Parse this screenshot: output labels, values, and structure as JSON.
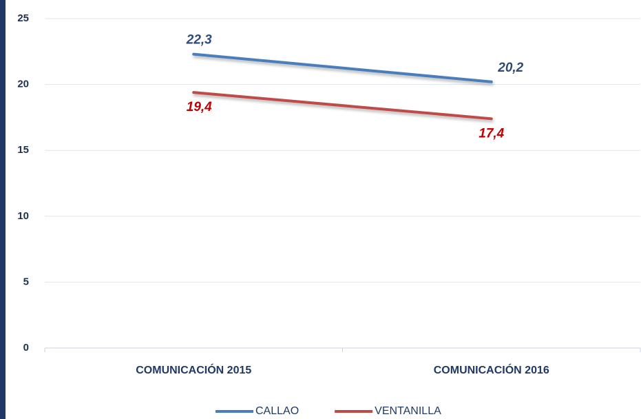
{
  "chart_data": {
    "type": "line",
    "categories": [
      "COMUNICACIÓN 2015",
      "COMUNICACIÓN 2016"
    ],
    "series": [
      {
        "name": "CALLAO",
        "color": "#4a7ebb",
        "label_color": "#2e4a7a",
        "values": [
          22.3,
          20.2
        ],
        "value_labels": [
          "22,3",
          "20,2"
        ]
      },
      {
        "name": "VENTANILLA",
        "color": "#be4b48",
        "label_color": "#c00000",
        "values": [
          19.4,
          17.4
        ],
        "value_labels": [
          "19,4",
          "17,4"
        ]
      }
    ],
    "ylim": [
      0,
      25
    ],
    "yticks": [
      0,
      5,
      10,
      15,
      20,
      25
    ],
    "grid": true,
    "legend": "bottom"
  }
}
